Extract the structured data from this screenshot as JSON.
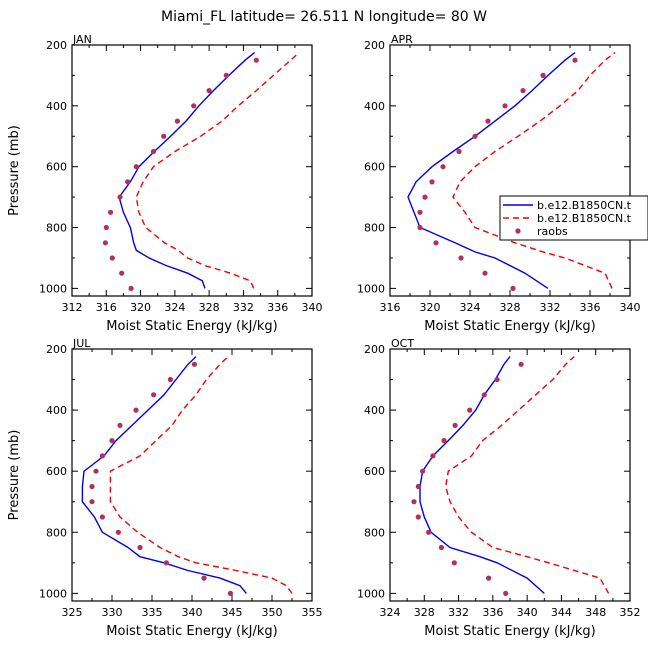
{
  "title": "Miami_FL  latitude= 26.511 N longitude= 80 W",
  "legend": {
    "entries": [
      {
        "label": "b.e12.B1850CN.t",
        "style": "solid",
        "color": "#0000ee"
      },
      {
        "label": "b.e12.B1850CN.t",
        "style": "dashed",
        "color": "#ee0000"
      },
      {
        "label": "raobs",
        "style": "dots",
        "color": "#b03060"
      }
    ]
  },
  "chart_data": [
    {
      "type": "line",
      "panel": "JAN",
      "xlabel": "Moist Static Energy (kJ/kg)",
      "ylabel": "Pressure (mb)",
      "xlim": [
        312,
        340
      ],
      "ylim": [
        1025,
        200
      ],
      "xticks": [
        312,
        316,
        320,
        324,
        328,
        332,
        336,
        340
      ],
      "yticks": [
        200,
        400,
        600,
        800,
        1000
      ],
      "pressure": [
        1000,
        975,
        950,
        925,
        900,
        875,
        850,
        800,
        750,
        700,
        650,
        600,
        550,
        500,
        450,
        400,
        350,
        300,
        250,
        225
      ],
      "series": [
        {
          "name": "b.e12.B1850CN.t (solid)",
          "values": [
            327.5,
            327.2,
            325.5,
            323.0,
            321.0,
            319.5,
            319.2,
            318.8,
            318.0,
            317.5,
            318.8,
            319.8,
            321.6,
            323.5,
            325.3,
            326.8,
            328.5,
            330.3,
            332.2,
            333.3
          ]
        },
        {
          "name": "b.e12.B1850CN.t (dashed)",
          "values": [
            333.2,
            332.8,
            330.5,
            327.5,
            325.5,
            324.4,
            322.8,
            320.6,
            319.8,
            319.5,
            320.3,
            321.5,
            324.0,
            327.0,
            329.5,
            331.4,
            333.5,
            335.5,
            337.5,
            338.5
          ]
        }
      ],
      "raobs": {
        "pressure": [
          1000,
          950,
          900,
          850,
          800,
          750,
          700,
          650,
          600,
          550,
          500,
          450,
          400,
          350,
          300,
          250
        ],
        "values": [
          318.9,
          317.8,
          316.7,
          315.9,
          316.0,
          316.5,
          317.6,
          318.5,
          319.5,
          321.5,
          322.7,
          324.3,
          326.2,
          328.0,
          330.0,
          333.5
        ]
      }
    },
    {
      "type": "line",
      "panel": "APR",
      "xlabel": "Moist Static Energy (kJ/kg)",
      "ylabel": "",
      "xlim": [
        316,
        340
      ],
      "ylim": [
        1025,
        200
      ],
      "xticks": [
        316,
        320,
        324,
        328,
        332,
        336,
        340
      ],
      "yticks": [
        200,
        400,
        600,
        800,
        1000
      ],
      "pressure": [
        1000,
        950,
        900,
        880,
        850,
        800,
        750,
        700,
        650,
        600,
        550,
        500,
        450,
        400,
        350,
        300,
        250,
        225
      ],
      "series": [
        {
          "name": "b.e12.B1850CN.t (solid)",
          "values": [
            331.8,
            329.5,
            326.5,
            324.5,
            322.5,
            319.0,
            318.4,
            317.8,
            318.6,
            320.2,
            322.3,
            324.5,
            326.5,
            328.5,
            330.2,
            331.8,
            333.5,
            334.5
          ]
        },
        {
          "name": "b.e12.B1850CN.t (dashed)",
          "values": [
            338.2,
            337.5,
            333.5,
            331.3,
            328.5,
            324.5,
            323.5,
            322.3,
            323.0,
            324.5,
            326.5,
            328.8,
            331.0,
            333.0,
            334.8,
            336.0,
            337.5,
            338.5
          ]
        }
      ],
      "raobs": {
        "pressure": [
          1000,
          950,
          900,
          850,
          800,
          750,
          700,
          650,
          600,
          550,
          500,
          450,
          400,
          350,
          300,
          250
        ],
        "values": [
          328.3,
          325.5,
          323.1,
          320.6,
          319.0,
          319.0,
          319.5,
          320.2,
          321.3,
          322.9,
          324.5,
          325.8,
          327.5,
          329.3,
          331.3,
          334.5
        ]
      }
    },
    {
      "type": "line",
      "panel": "JUL",
      "xlabel": "Moist Static Energy (kJ/kg)",
      "ylabel": "Pressure (mb)",
      "xlim": [
        325,
        355
      ],
      "ylim": [
        1025,
        200
      ],
      "xticks": [
        325,
        330,
        335,
        340,
        345,
        350,
        355
      ],
      "yticks": [
        200,
        400,
        600,
        800,
        1000
      ],
      "pressure": [
        1000,
        975,
        950,
        925,
        900,
        880,
        850,
        800,
        750,
        700,
        650,
        600,
        550,
        500,
        450,
        400,
        350,
        300,
        250,
        225
      ],
      "series": [
        {
          "name": "b.e12.B1850CN.t (solid)",
          "values": [
            346.8,
            346.0,
            343.5,
            339.5,
            336.5,
            333.5,
            332.0,
            328.8,
            327.8,
            326.3,
            326.3,
            326.5,
            329.0,
            330.5,
            332.5,
            334.5,
            336.5,
            338.0,
            339.5,
            340.5
          ]
        },
        {
          "name": "b.e12.B1850CN.t (dashed)",
          "values": [
            352.5,
            351.8,
            350.0,
            345.5,
            340.5,
            338.3,
            336.0,
            333.2,
            331.0,
            329.8,
            329.8,
            329.8,
            333.5,
            335.5,
            337.5,
            338.8,
            340.5,
            341.8,
            343.5,
            344.5
          ]
        }
      ],
      "raobs": {
        "pressure": [
          1000,
          950,
          900,
          850,
          800,
          750,
          700,
          650,
          600,
          550,
          500,
          450,
          400,
          350,
          300,
          250
        ],
        "values": [
          344.8,
          341.5,
          336.8,
          333.5,
          330.8,
          328.8,
          327.5,
          327.5,
          328.0,
          328.8,
          330.0,
          331.0,
          333.0,
          335.2,
          337.3,
          340.3
        ]
      }
    },
    {
      "type": "line",
      "panel": "OCT",
      "xlabel": "Moist Static Energy (kJ/kg)",
      "ylabel": "",
      "xlim": [
        324,
        352
      ],
      "ylim": [
        1025,
        200
      ],
      "xticks": [
        324,
        328,
        332,
        336,
        340,
        344,
        348,
        352
      ],
      "yticks": [
        200,
        400,
        600,
        800,
        1000
      ],
      "pressure": [
        1000,
        950,
        900,
        880,
        850,
        800,
        750,
        700,
        650,
        600,
        550,
        500,
        450,
        400,
        350,
        300,
        250,
        225
      ],
      "series": [
        {
          "name": "b.e12.B1850CN.t (solid)",
          "values": [
            342.0,
            340.0,
            336.5,
            334.5,
            331.0,
            328.8,
            328.0,
            327.5,
            327.5,
            327.8,
            329.0,
            330.8,
            332.5,
            334.0,
            335.0,
            336.3,
            337.3,
            338.0
          ]
        },
        {
          "name": "b.e12.B1850CN.t (dashed)",
          "values": [
            349.5,
            348.5,
            342.5,
            340.0,
            336.0,
            333.5,
            332.0,
            331.0,
            330.5,
            330.8,
            333.5,
            334.8,
            337.0,
            339.0,
            341.0,
            343.0,
            344.5,
            345.5
          ]
        }
      ],
      "raobs": {
        "pressure": [
          1000,
          950,
          900,
          850,
          800,
          750,
          700,
          650,
          600,
          550,
          500,
          450,
          400,
          350,
          300,
          250
        ],
        "values": [
          337.5,
          335.5,
          331.5,
          330.0,
          328.5,
          327.3,
          326.8,
          327.3,
          327.8,
          329.0,
          330.3,
          331.6,
          333.3,
          335.0,
          336.5,
          339.3
        ]
      }
    }
  ]
}
